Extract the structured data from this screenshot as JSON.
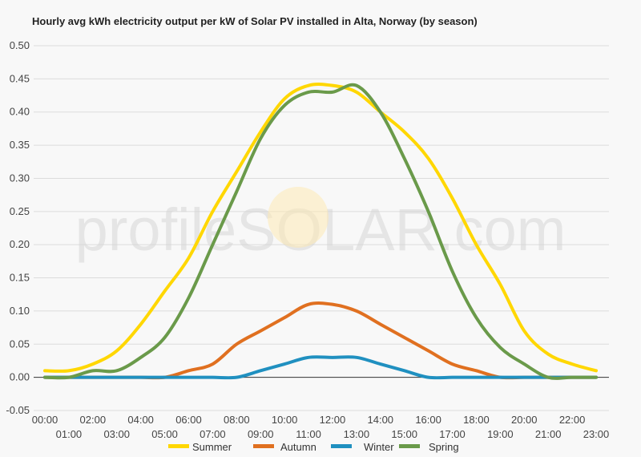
{
  "chart_data": {
    "type": "line",
    "title": "Hourly avg kWh electricity output per kW of Solar PV installed in Alta, Norway (by season)",
    "watermark": "profileSOLAR.com",
    "ylim": [
      -0.05,
      0.5
    ],
    "yticks": [
      "0.50",
      "0.45",
      "0.40",
      "0.35",
      "0.30",
      "0.25",
      "0.20",
      "0.15",
      "0.10",
      "0.05",
      "0.00",
      "-0.05"
    ],
    "ytick_values": [
      0.5,
      0.45,
      0.4,
      0.35,
      0.3,
      0.25,
      0.2,
      0.15,
      0.1,
      0.05,
      0.0,
      -0.05
    ],
    "categories": [
      "00:00",
      "01:00",
      "02:00",
      "03:00",
      "04:00",
      "05:00",
      "06:00",
      "07:00",
      "08:00",
      "09:00",
      "10:00",
      "11:00",
      "12:00",
      "13:00",
      "14:00",
      "15:00",
      "16:00",
      "17:00",
      "18:00",
      "19:00",
      "20:00",
      "21:00",
      "22:00",
      "23:00"
    ],
    "grid": true,
    "legend_position": "bottom",
    "series": [
      {
        "name": "Summer",
        "color": "#ffd700",
        "values": [
          0.01,
          0.01,
          0.02,
          0.04,
          0.08,
          0.13,
          0.18,
          0.25,
          0.31,
          0.37,
          0.42,
          0.44,
          0.44,
          0.43,
          0.4,
          0.37,
          0.33,
          0.27,
          0.2,
          0.14,
          0.07,
          0.035,
          0.02,
          0.01
        ]
      },
      {
        "name": "Autumn",
        "color": "#e07020",
        "values": [
          0.0,
          0.0,
          0.0,
          0.0,
          0.0,
          0.0,
          0.01,
          0.02,
          0.05,
          0.07,
          0.09,
          0.11,
          0.11,
          0.1,
          0.08,
          0.06,
          0.04,
          0.02,
          0.01,
          0.0,
          0.0,
          0.0,
          0.0,
          0.0
        ]
      },
      {
        "name": "Winter",
        "color": "#2090c0",
        "values": [
          0.0,
          0.0,
          0.0,
          0.0,
          0.0,
          0.0,
          0.0,
          0.0,
          0.0,
          0.01,
          0.02,
          0.03,
          0.03,
          0.03,
          0.02,
          0.01,
          0.0,
          0.0,
          0.0,
          0.0,
          0.0,
          0.0,
          0.0,
          0.0
        ]
      },
      {
        "name": "Spring",
        "color": "#6a9a4a",
        "values": [
          0.0,
          0.0,
          0.01,
          0.01,
          0.03,
          0.06,
          0.12,
          0.2,
          0.28,
          0.36,
          0.41,
          0.43,
          0.43,
          0.44,
          0.4,
          0.33,
          0.25,
          0.16,
          0.09,
          0.045,
          0.02,
          0.0,
          0.0,
          0.0
        ]
      }
    ]
  }
}
